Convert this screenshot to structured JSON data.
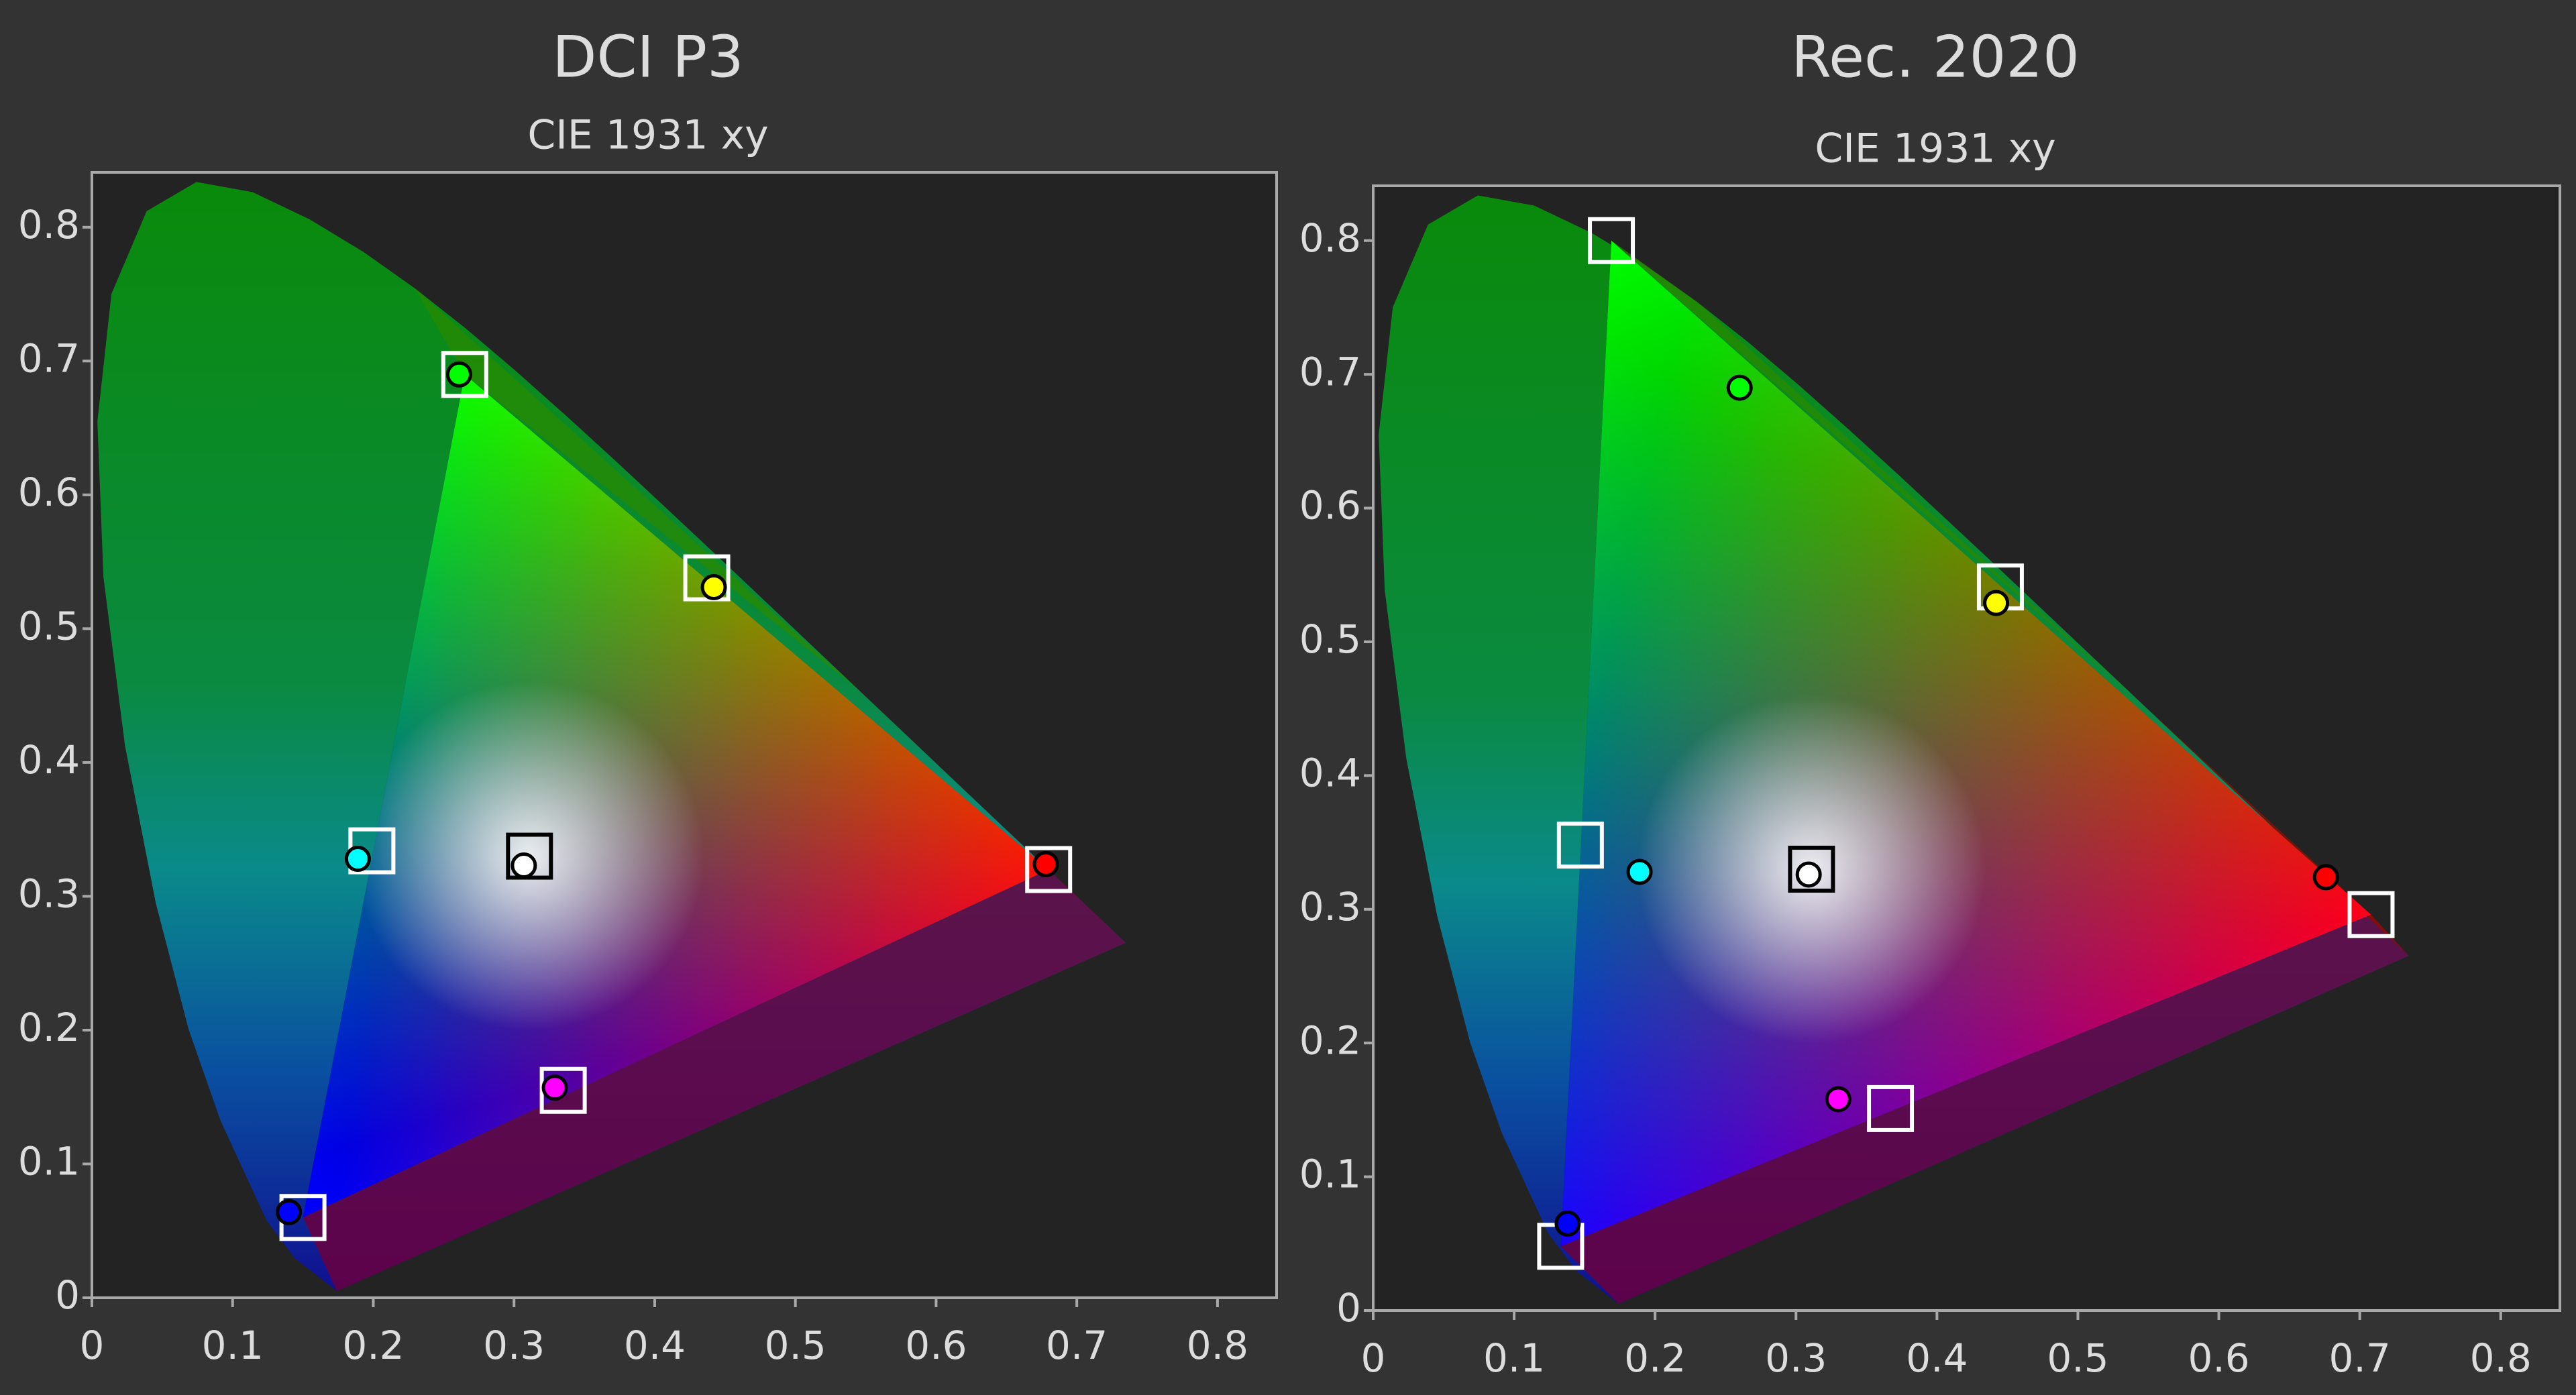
{
  "chart_data": [
    {
      "type": "scatter",
      "title": "DCI P3",
      "subtitle": "CIE 1931 xy",
      "xlim": [
        0,
        0.842
      ],
      "ylim": [
        0,
        0.841
      ],
      "xticks": [
        0,
        0.1,
        0.2,
        0.3,
        0.4,
        0.5,
        0.6,
        0.7,
        0.8
      ],
      "yticks": [
        0,
        0.1,
        0.2,
        0.3,
        0.4,
        0.5,
        0.6,
        0.7,
        0.8
      ],
      "series": [
        {
          "marker": "square",
          "x": [
            0.68,
            0.265,
            0.15,
            0.199,
            0.335,
            0.437,
            0.311
          ],
          "y": [
            0.32,
            0.69,
            0.06,
            0.334,
            0.155,
            0.538,
            0.33
          ],
          "colors": [
            "#ffffff",
            "#ffffff",
            "#ffffff",
            "#ffffff",
            "#ffffff",
            "#ffffff",
            "#000000"
          ]
        },
        {
          "marker": "circle",
          "x": [
            0.678,
            0.261,
            0.14,
            0.189,
            0.329,
            0.442,
            0.307
          ],
          "y": [
            0.324,
            0.69,
            0.064,
            0.328,
            0.157,
            0.531,
            0.323
          ],
          "colors": [
            "#ff0000",
            "#00ff00",
            "#0000ff",
            "#00ffff",
            "#ff00ff",
            "#ffff00",
            "#ffffff"
          ]
        }
      ]
    },
    {
      "type": "scatter",
      "title": "Rec. 2020",
      "subtitle": "CIE 1931 xy",
      "xlim": [
        0,
        0.842
      ],
      "ylim": [
        0,
        0.841
      ],
      "xticks": [
        0,
        0.1,
        0.2,
        0.3,
        0.4,
        0.5,
        0.6,
        0.7,
        0.8
      ],
      "yticks": [
        0,
        0.1,
        0.2,
        0.3,
        0.4,
        0.5,
        0.6,
        0.7,
        0.8
      ],
      "series": [
        {
          "marker": "square",
          "x": [
            0.708,
            0.169,
            0.133,
            0.147,
            0.367,
            0.445,
            0.311
          ],
          "y": [
            0.296,
            0.8,
            0.048,
            0.348,
            0.151,
            0.541,
            0.33
          ],
          "colors": [
            "#ffffff",
            "#ffffff",
            "#ffffff",
            "#ffffff",
            "#ffffff",
            "#ffffff",
            "#000000"
          ]
        },
        {
          "marker": "circle",
          "x": [
            0.676,
            0.26,
            0.138,
            0.189,
            0.33,
            0.442,
            0.309
          ],
          "y": [
            0.324,
            0.69,
            0.065,
            0.328,
            0.158,
            0.529,
            0.326
          ],
          "colors": [
            "#ff0000",
            "#00ff00",
            "#0000ff",
            "#00ffff",
            "#ff00ff",
            "#ffff00",
            "#ffffff"
          ]
        }
      ]
    }
  ]
}
